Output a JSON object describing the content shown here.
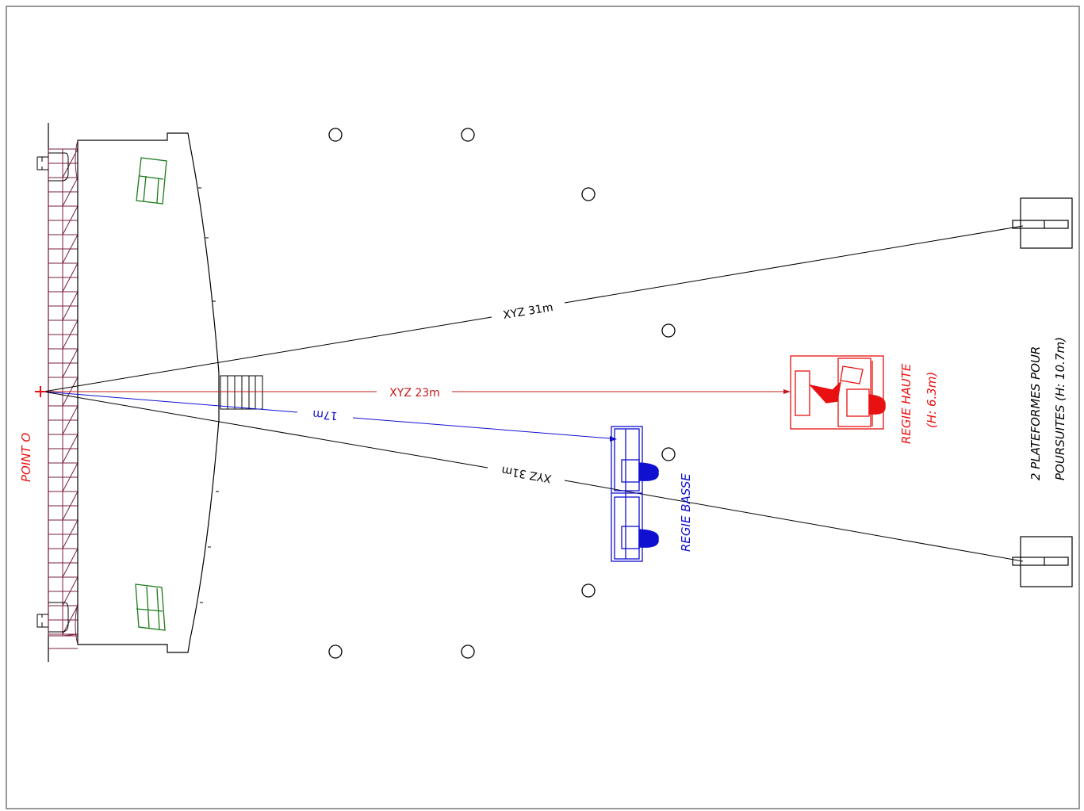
{
  "labels": {
    "point_o": "POINT O",
    "xyz_31m_top": "XYZ 31m",
    "xyz_23m": "XYZ 23m",
    "dist_17m": "17m",
    "xyz_31m_bottom": "XYZ 31m",
    "regie_basse": "REGIE BASSE",
    "regie_haute": "REGIE HAUTE",
    "regie_haute_height": "(H: 6.3m)",
    "plateformes_line1": "2 PLATEFORMES POUR",
    "plateformes_line2": "POURSUITES (H: 10.7m)"
  },
  "colors": {
    "truss": "#7a1f3d",
    "red": "#e81010",
    "blue": "#1010d0",
    "green": "#1a7a1a",
    "line": "#000000",
    "dim_red": "#c21b1b"
  }
}
